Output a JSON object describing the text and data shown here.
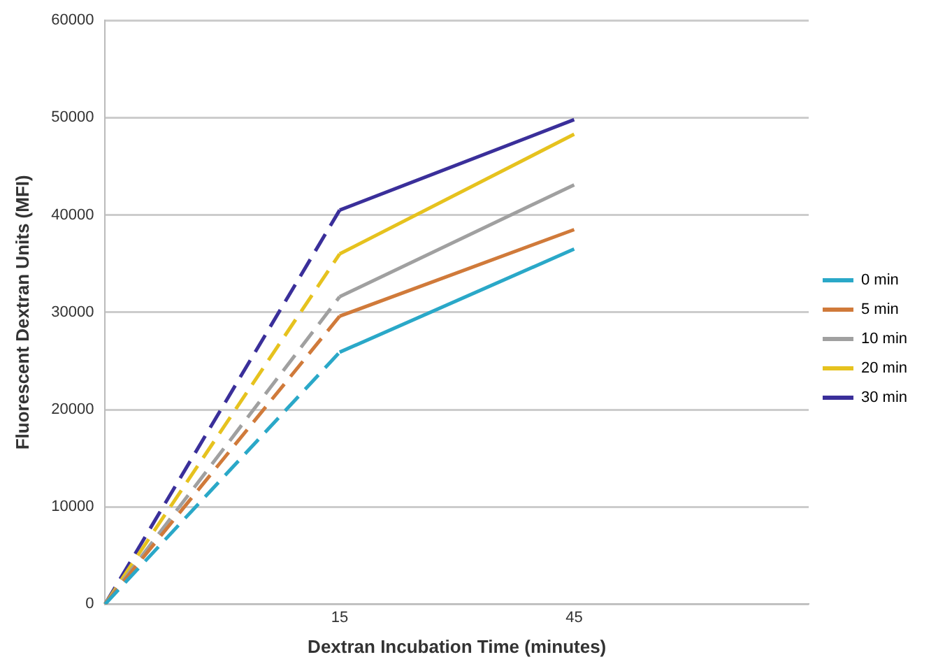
{
  "chart_data": {
    "type": "line",
    "xlabel": "Dextran Incubation Time (minutes)",
    "ylabel": "Fluorescent Dextran Units (MFI)",
    "categories": [
      null,
      "15",
      "45",
      null
    ],
    "ylim": [
      0,
      60000
    ],
    "yticks": [
      0,
      10000,
      20000,
      30000,
      40000,
      50000,
      60000
    ],
    "grid": "y",
    "legend": "right",
    "marker": "none",
    "series": [
      {
        "color": "#2aa8c8",
        "values": [
          0,
          25900,
          null,
          null
        ],
        "line_style": "dashed"
      },
      {
        "color": "#d07a3a",
        "values": [
          0,
          29600,
          null,
          null
        ],
        "line_style": "dashed"
      },
      {
        "color": "#a0a0a0",
        "values": [
          0,
          31600,
          null,
          null
        ],
        "line_style": "dashed"
      },
      {
        "color": "#e6c21e",
        "values": [
          0,
          36000,
          null,
          null
        ],
        "line_style": "dashed"
      },
      {
        "color": "#3a2f9a",
        "values": [
          0,
          40500,
          null,
          null
        ],
        "line_style": "dashed"
      },
      {
        "name": "0 min",
        "color": "#2aa8c8",
        "values": [
          null,
          25900,
          36500,
          null
        ],
        "line_style": "solid"
      },
      {
        "name": "5 min",
        "color": "#d07a3a",
        "values": [
          null,
          29600,
          38500,
          null
        ],
        "line_style": "solid"
      },
      {
        "name": "10 min",
        "color": "#a0a0a0",
        "values": [
          null,
          31600,
          43100,
          null
        ],
        "line_style": "solid"
      },
      {
        "name": "20 min",
        "color": "#e6c21e",
        "values": [
          null,
          36000,
          48300,
          null
        ],
        "line_style": "solid"
      },
      {
        "name": "30 min",
        "color": "#3a2f9a",
        "values": [
          null,
          40500,
          49800,
          null
        ],
        "line_style": "solid"
      }
    ]
  }
}
